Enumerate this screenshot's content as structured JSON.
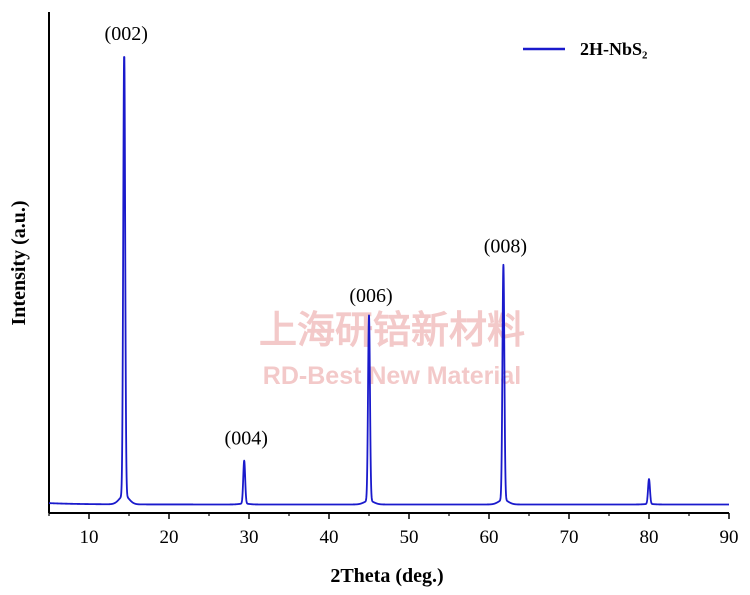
{
  "chart_data": {
    "type": "line",
    "xlabel": "2Theta (deg.)",
    "ylabel": "Intensity (a.u.)",
    "xlim": [
      5,
      90
    ],
    "ylim": [
      0,
      100
    ],
    "xticks": [
      10,
      20,
      30,
      40,
      50,
      60,
      70,
      80,
      90
    ],
    "y_tick_labels_shown": false,
    "grid": false,
    "legend": {
      "position": "top-right",
      "entries": [
        "2H-NbS₂"
      ]
    },
    "series": [
      {
        "name": "2H-NbS₂",
        "color": "#1a1acc",
        "baseline": 1.0,
        "peaks": [
          {
            "x": 14.4,
            "y": 100,
            "hkl": "(002)"
          },
          {
            "x": 29.4,
            "y": 10.5,
            "hkl": "(004)"
          },
          {
            "x": 45.0,
            "y": 42,
            "hkl": "(006)"
          },
          {
            "x": 61.8,
            "y": 53,
            "hkl": "(008)"
          },
          {
            "x": 80.0,
            "y": 6.5,
            "hkl": ""
          }
        ]
      }
    ],
    "annotations": [
      "(002)",
      "(004)",
      "(006)",
      "(008)"
    ]
  },
  "watermark": {
    "chinese": "上海研锫新材料",
    "english": "RD-Best New Material",
    "color": "#f3c9c9"
  }
}
